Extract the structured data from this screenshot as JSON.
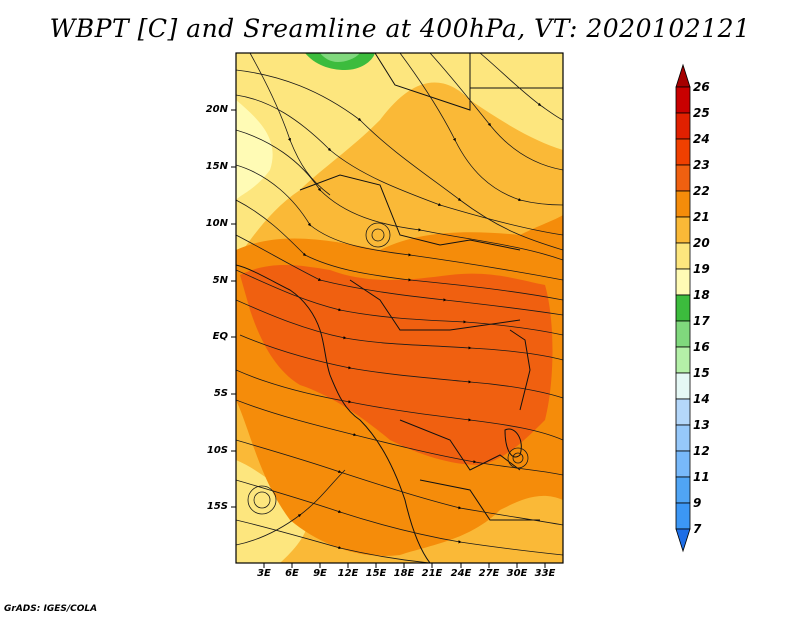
{
  "title": "WBPT [C] and Sreamline at 400hPa, VT: 2020102121",
  "credit": "GrADS: IGES/COLA",
  "map": {
    "lat_ticks": [
      "20N",
      "15N",
      "10N",
      "5N",
      "EQ",
      "5S",
      "10S",
      "15S"
    ],
    "lon_ticks": [
      "3E",
      "6E",
      "9E",
      "12E",
      "15E",
      "18E",
      "21E",
      "24E",
      "27E",
      "30E",
      "33E"
    ]
  },
  "colorbar": {
    "labels": [
      "26",
      "25",
      "24",
      "23",
      "22",
      "21",
      "20",
      "19",
      "18",
      "17",
      "16",
      "15",
      "14",
      "13",
      "12",
      "11",
      "9",
      "7"
    ],
    "colors": [
      "#a50000",
      "#c80000",
      "#e02000",
      "#f04000",
      "#f06010",
      "#f58c0a",
      "#fab937",
      "#fde67e",
      "#fffbb5",
      "#3cbc3d",
      "#80d87d",
      "#b4f0a8",
      "#e5f8f5",
      "#b4d7fa",
      "#96c8fa",
      "#78b9fa",
      "#50a5f5",
      "#3c97f5",
      "#1e6ee6"
    ]
  }
}
